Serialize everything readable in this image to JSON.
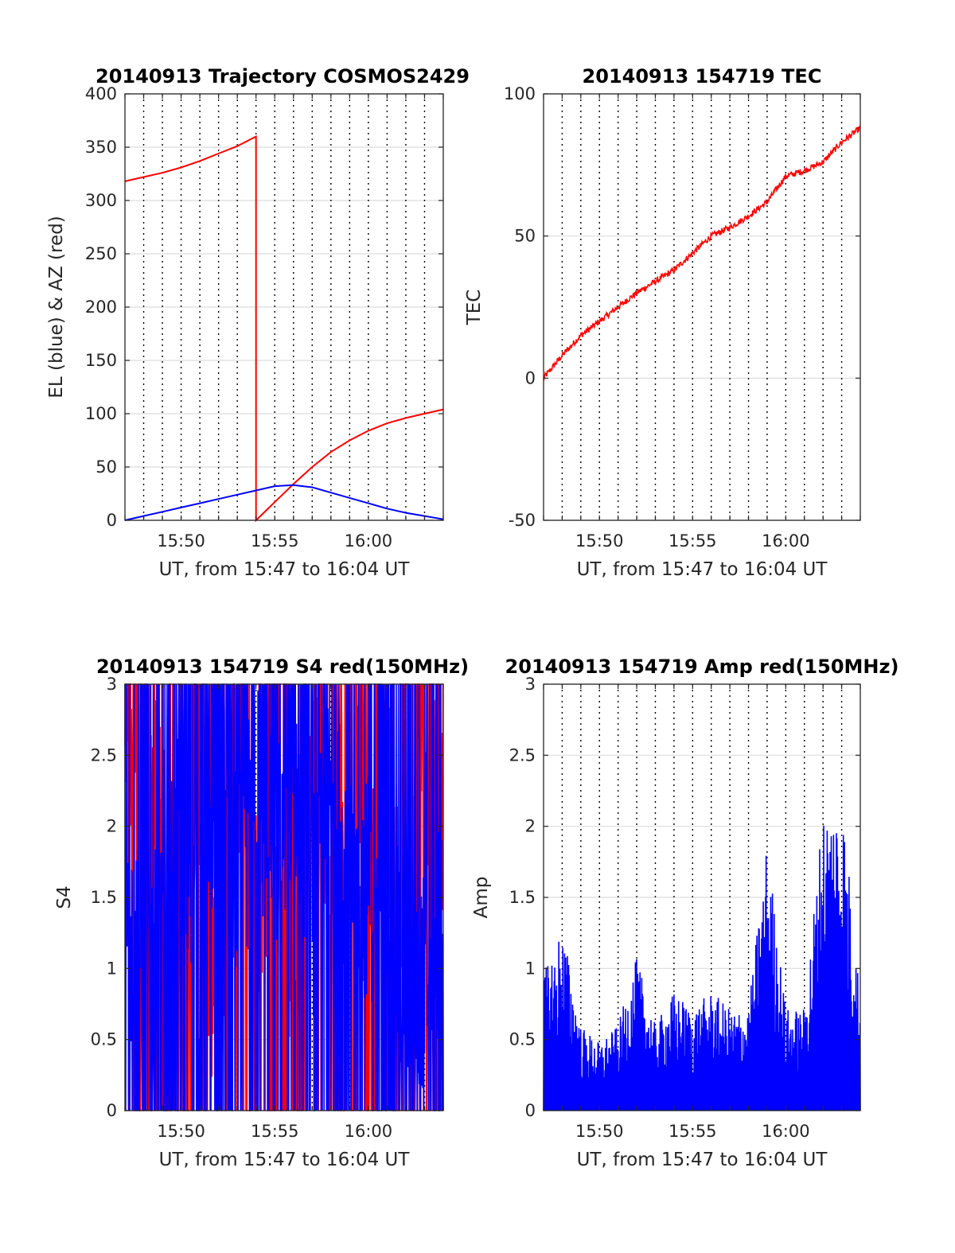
{
  "chart_data": [
    {
      "type": "line",
      "title": "20140913 Trajectory COSMOS2429",
      "xlabel": "UT, from 15:47 to 16:04 UT",
      "ylabel": "EL (blue) & AZ (red)",
      "xlim": [
        "15:47",
        "16:04"
      ],
      "ylim": [
        0,
        400
      ],
      "x_ticks": [
        "15:50",
        "15:55",
        "16:00"
      ],
      "y_ticks": [
        "0",
        "50",
        "100",
        "150",
        "200",
        "250",
        "300",
        "350",
        "400"
      ],
      "grid": true,
      "series": [
        {
          "color": "#ff0000",
          "x": [
            "15:47",
            "15:48",
            "15:49",
            "15:50",
            "15:51",
            "15:52",
            "15:53",
            "15:54",
            "15:54",
            "15:55",
            "15:56",
            "15:57",
            "15:58",
            "15:59",
            "16:00",
            "16:01",
            "16:02",
            "16:03",
            "16:04"
          ],
          "values": [
            318,
            322,
            326,
            331,
            337,
            344,
            351,
            360,
            0,
            17,
            34,
            50,
            64,
            75,
            84,
            91,
            96,
            100,
            104
          ]
        },
        {
          "color": "#0000ff",
          "x": [
            "15:47",
            "15:48",
            "15:49",
            "15:50",
            "15:51",
            "15:52",
            "15:53",
            "15:54",
            "15:55",
            "15:56",
            "15:57",
            "15:58",
            "15:59",
            "16:00",
            "16:01",
            "16:02",
            "16:03",
            "16:04"
          ],
          "values": [
            0,
            4,
            8,
            12,
            16,
            20,
            24,
            28,
            32,
            33,
            31,
            26,
            21,
            16,
            11,
            7,
            4,
            1
          ]
        }
      ]
    },
    {
      "type": "line",
      "title": "20140913 154719 TEC",
      "xlabel": "UT, from 15:47 to 16:04 UT",
      "ylabel": "TEC",
      "xlim": [
        "15:47",
        "16:04"
      ],
      "ylim": [
        -50,
        100
      ],
      "x_ticks": [
        "15:50",
        "15:55",
        "16:00"
      ],
      "y_ticks": [
        "-50",
        "0",
        "50",
        "100"
      ],
      "grid": true,
      "series": [
        {
          "color": "#ff0000",
          "x": [
            "15:47",
            "15:48",
            "15:49",
            "15:50",
            "15:51",
            "15:52",
            "15:53",
            "15:54",
            "15:55",
            "15:56",
            "15:57",
            "15:58",
            "15:59",
            "16:00",
            "16:01",
            "16:02",
            "16:03",
            "16:04"
          ],
          "values": [
            0,
            8,
            15,
            20,
            25,
            30,
            34,
            38,
            44,
            50,
            53,
            57,
            62,
            71,
            73,
            76,
            83,
            88
          ]
        }
      ]
    },
    {
      "type": "line",
      "title": "20140913 154719 S4 red(150MHz)",
      "xlabel": "UT, from 15:47 to 16:04 UT",
      "ylabel": "S4",
      "xlim": [
        "15:47",
        "16:04"
      ],
      "ylim": [
        0,
        3
      ],
      "x_ticks": [
        "15:50",
        "15:55",
        "16:00"
      ],
      "y_ticks": [
        "0",
        "0.5",
        "1",
        "1.5",
        "2",
        "2.5",
        "3"
      ],
      "grid": true,
      "series": [
        {
          "color": "#ff0000",
          "x": [
            "15:47",
            "15:48",
            "15:49",
            "15:50",
            "15:51",
            "15:52",
            "15:53",
            "15:54",
            "15:55",
            "15:56",
            "15:57",
            "15:58",
            "15:59",
            "16:00",
            "16:01",
            "16:02",
            "16:03",
            "16:04"
          ],
          "values": [
            2.8,
            2.5,
            2.0,
            1.2,
            1.8,
            0.6,
            2.6,
            1.4,
            2.2,
            0.9,
            2.4,
            1.6,
            2.7,
            1.3,
            2.3,
            1.0,
            2.5,
            2.0
          ]
        },
        {
          "color": "#0000ff",
          "x": [
            "15:47",
            "15:48",
            "15:49",
            "15:50",
            "15:51",
            "15:52",
            "15:53",
            "15:54",
            "15:55",
            "15:56",
            "15:57",
            "15:58",
            "15:59",
            "16:00",
            "16:01",
            "16:02",
            "16:03",
            "16:04"
          ],
          "values": [
            1.3,
            1.2,
            1.1,
            2.0,
            1.0,
            2.7,
            1.5,
            2.3,
            1.8,
            2.5,
            1.4,
            2.2,
            1.5,
            1.6,
            1.3,
            0.9,
            0.9,
            1.4
          ]
        }
      ]
    },
    {
      "type": "line",
      "title": "20140913 154719 Amp red(150MHz)",
      "xlabel": "UT, from 15:47 to 16:04 UT",
      "ylabel": "Amp",
      "xlim": [
        "15:47",
        "16:04"
      ],
      "ylim": [
        0,
        3
      ],
      "x_ticks": [
        "15:50",
        "15:55",
        "16:00"
      ],
      "y_ticks": [
        "0",
        "0.5",
        "1",
        "1.5",
        "2",
        "2.5",
        "3"
      ],
      "grid": true,
      "series": [
        {
          "color": "#0000ff",
          "x": [
            "15:47",
            "15:48",
            "15:49",
            "15:50",
            "15:51",
            "15:52",
            "15:53",
            "15:54",
            "15:55",
            "15:56",
            "15:57",
            "15:58",
            "15:59",
            "16:00",
            "16:01",
            "16:02",
            "16:03",
            "16:04"
          ],
          "values": [
            0.8,
            1.1,
            0.5,
            0.4,
            0.5,
            0.9,
            0.5,
            0.7,
            0.6,
            0.7,
            0.6,
            0.6,
            1.6,
            0.6,
            0.6,
            1.8,
            1.9,
            0.7
          ]
        }
      ]
    }
  ]
}
